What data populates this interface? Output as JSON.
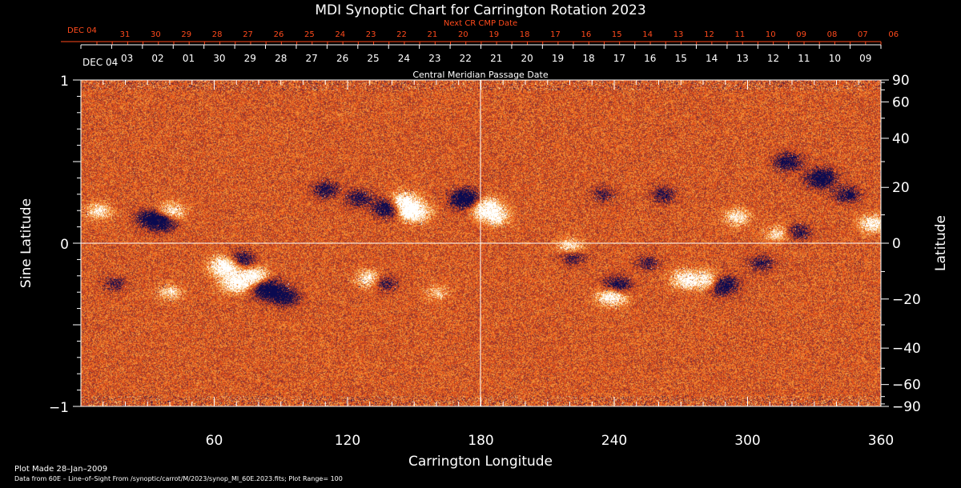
{
  "chart_data": {
    "type": "heatmap",
    "title": "MDI Synoptic Chart for Carrington Rotation 2023",
    "xlabel": "Carrington Longitude",
    "ylabel_left": "Sine Latitude",
    "ylabel_right": "Latitude",
    "xlim": [
      0,
      360
    ],
    "ylim": [
      -1,
      1
    ],
    "x_ticks": [
      60,
      120,
      180,
      240,
      300,
      360
    ],
    "y_ticks_left": [
      {
        "value": 1,
        "label": "1"
      },
      {
        "value": 0,
        "label": "0"
      },
      {
        "value": -1,
        "label": "−1"
      }
    ],
    "y_ticks_right": [
      {
        "deg": 90,
        "label": "90"
      },
      {
        "deg": 60,
        "label": "60"
      },
      {
        "deg": 40,
        "label": "40"
      },
      {
        "deg": 20,
        "label": "20"
      },
      {
        "deg": 0,
        "label": "0"
      },
      {
        "deg": -20,
        "label": "−20"
      },
      {
        "deg": -40,
        "label": "−40"
      },
      {
        "deg": -60,
        "label": "−60"
      },
      {
        "deg": -90,
        "label": "−90"
      }
    ],
    "cmp_axis": {
      "label": "Central Meridian Passage Date",
      "start_label": "DEC 04",
      "dates": [
        "03",
        "02",
        "01",
        "30",
        "29",
        "28",
        "27",
        "26",
        "25",
        "24",
        "23",
        "22",
        "21",
        "20",
        "19",
        "18",
        "17",
        "16",
        "15",
        "14",
        "13",
        "12",
        "11",
        "10",
        "09"
      ]
    },
    "next_cmp_axis": {
      "label": "Next CR CMP Date",
      "start_label": "DEC 04",
      "dates": [
        "31",
        "30",
        "29",
        "28",
        "27",
        "26",
        "25",
        "24",
        "23",
        "22",
        "21",
        "20",
        "19",
        "18",
        "17",
        "16",
        "15",
        "14",
        "13",
        "12",
        "11",
        "10",
        "09",
        "08",
        "07",
        "06"
      ]
    },
    "reference_lines": {
      "longitude": 180,
      "sine_latitude": 0
    },
    "active_regions": [
      {
        "lon": 36,
        "sinlat": 0.14,
        "polarity": "negative",
        "strength": 1.0
      },
      {
        "lon": 40,
        "sinlat": 0.19,
        "polarity": "positive",
        "strength": 0.8
      },
      {
        "lon": 8,
        "sinlat": 0.2,
        "polarity": "positive",
        "strength": 0.6
      },
      {
        "lon": 30,
        "sinlat": 0.16,
        "polarity": "negative",
        "strength": 0.5
      },
      {
        "lon": 65,
        "sinlat": -0.14,
        "polarity": "positive",
        "strength": 1.0
      },
      {
        "lon": 70,
        "sinlat": -0.24,
        "polarity": "positive",
        "strength": 0.9
      },
      {
        "lon": 78,
        "sinlat": -0.2,
        "polarity": "positive",
        "strength": 0.8
      },
      {
        "lon": 72,
        "sinlat": -0.1,
        "polarity": "negative",
        "strength": 0.7
      },
      {
        "lon": 84,
        "sinlat": -0.28,
        "polarity": "negative",
        "strength": 1.0
      },
      {
        "lon": 92,
        "sinlat": -0.33,
        "polarity": "negative",
        "strength": 0.7
      },
      {
        "lon": 110,
        "sinlat": 0.33,
        "polarity": "negative",
        "strength": 0.6
      },
      {
        "lon": 125,
        "sinlat": 0.28,
        "polarity": "negative",
        "strength": 0.6
      },
      {
        "lon": 138,
        "sinlat": 0.22,
        "polarity": "negative",
        "strength": 0.9
      },
      {
        "lon": 145,
        "sinlat": 0.25,
        "polarity": "positive",
        "strength": 1.0
      },
      {
        "lon": 150,
        "sinlat": 0.19,
        "polarity": "positive",
        "strength": 0.9
      },
      {
        "lon": 130,
        "sinlat": -0.22,
        "polarity": "positive",
        "strength": 0.7
      },
      {
        "lon": 136,
        "sinlat": -0.24,
        "polarity": "negative",
        "strength": 0.6
      },
      {
        "lon": 173,
        "sinlat": 0.27,
        "polarity": "negative",
        "strength": 1.0
      },
      {
        "lon": 182,
        "sinlat": 0.22,
        "polarity": "positive",
        "strength": 1.0
      },
      {
        "lon": 187,
        "sinlat": 0.16,
        "polarity": "positive",
        "strength": 0.6
      },
      {
        "lon": 220,
        "sinlat": -0.02,
        "polarity": "positive",
        "strength": 0.6
      },
      {
        "lon": 221,
        "sinlat": -0.08,
        "polarity": "negative",
        "strength": 0.5
      },
      {
        "lon": 235,
        "sinlat": 0.3,
        "polarity": "negative",
        "strength": 0.4
      },
      {
        "lon": 241,
        "sinlat": -0.26,
        "polarity": "negative",
        "strength": 0.8
      },
      {
        "lon": 239,
        "sinlat": -0.32,
        "polarity": "positive",
        "strength": 0.9
      },
      {
        "lon": 262,
        "sinlat": 0.3,
        "polarity": "negative",
        "strength": 0.5
      },
      {
        "lon": 272,
        "sinlat": -0.22,
        "polarity": "positive",
        "strength": 0.8
      },
      {
        "lon": 283,
        "sinlat": -0.23,
        "polarity": "positive",
        "strength": 0.9
      },
      {
        "lon": 288,
        "sinlat": -0.25,
        "polarity": "negative",
        "strength": 1.0
      },
      {
        "lon": 295,
        "sinlat": 0.16,
        "polarity": "positive",
        "strength": 0.6
      },
      {
        "lon": 306,
        "sinlat": -0.12,
        "polarity": "negative",
        "strength": 0.5
      },
      {
        "lon": 318,
        "sinlat": 0.5,
        "polarity": "negative",
        "strength": 0.7
      },
      {
        "lon": 333,
        "sinlat": 0.4,
        "polarity": "negative",
        "strength": 0.9
      },
      {
        "lon": 345,
        "sinlat": 0.3,
        "polarity": "negative",
        "strength": 0.6
      },
      {
        "lon": 356,
        "sinlat": 0.12,
        "polarity": "positive",
        "strength": 0.7
      },
      {
        "lon": 313,
        "sinlat": 0.06,
        "polarity": "positive",
        "strength": 0.5
      },
      {
        "lon": 323,
        "sinlat": 0.07,
        "polarity": "negative",
        "strength": 0.5
      },
      {
        "lon": 15,
        "sinlat": -0.25,
        "polarity": "negative",
        "strength": 0.4
      },
      {
        "lon": 40,
        "sinlat": -0.3,
        "polarity": "positive",
        "strength": 0.5
      },
      {
        "lon": 160,
        "sinlat": -0.3,
        "polarity": "positive",
        "strength": 0.4
      },
      {
        "lon": 255,
        "sinlat": -0.12,
        "polarity": "negative",
        "strength": 0.4
      }
    ],
    "colors": {
      "background": "#000000",
      "field_base": "#e8501a",
      "positive": "#ffffff",
      "negative": "#0a0a50",
      "next_cmp_text": "#ff4a1c",
      "axis": "#ffffff"
    }
  },
  "footer": {
    "plot_made": "Plot Made 28–Jan–2009",
    "data_source": "Data from 60E – Line–of–Sight From /synoptic/carrot/M/2023/synop_Ml_60E.2023.fits; Plot Range=  100"
  }
}
